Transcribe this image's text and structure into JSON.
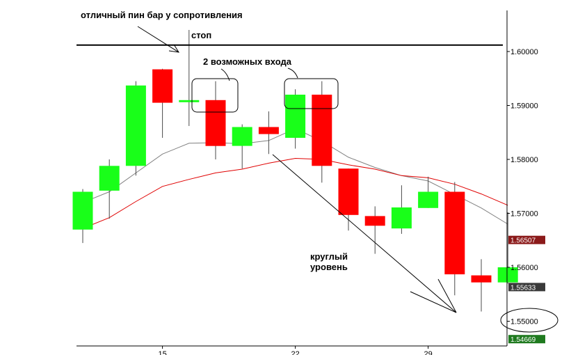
{
  "chart_data": {
    "type": "candlestick",
    "y_axis": {
      "range": [
        1.5445,
        1.6155
      ],
      "ticks": [
        "1.60000",
        "1.59000",
        "1.58000",
        "1.57000",
        "1.56000",
        "1.55000"
      ]
    },
    "x_axis": {
      "ticks": [
        {
          "label": "15",
          "index": 3
        },
        {
          "label": "22",
          "index": 8
        },
        {
          "label": "29",
          "index": 13
        }
      ]
    },
    "candles": [
      {
        "open": 1.567,
        "high": 1.5745,
        "low": 1.5645,
        "close": 1.574
      },
      {
        "open": 1.5742,
        "high": 1.58,
        "low": 1.569,
        "close": 1.5788
      },
      {
        "open": 1.5788,
        "high": 1.5945,
        "low": 1.577,
        "close": 1.5937
      },
      {
        "open": 1.5967,
        "high": 1.5968,
        "low": 1.584,
        "close": 1.5905
      },
      {
        "open": 1.591,
        "high": 1.604,
        "low": 1.5862,
        "close": 1.591
      },
      {
        "open": 1.591,
        "high": 1.5945,
        "low": 1.58,
        "close": 1.5825
      },
      {
        "open": 1.5825,
        "high": 1.5865,
        "low": 1.5783,
        "close": 1.586
      },
      {
        "open": 1.586,
        "high": 1.5889,
        "low": 1.581,
        "close": 1.5847
      },
      {
        "open": 1.584,
        "high": 1.593,
        "low": 1.582,
        "close": 1.592
      },
      {
        "open": 1.592,
        "high": 1.5945,
        "low": 1.5757,
        "close": 1.5788
      },
      {
        "open": 1.5783,
        "high": 1.5783,
        "low": 1.5668,
        "close": 1.5697
      },
      {
        "open": 1.5695,
        "high": 1.5713,
        "low": 1.5625,
        "close": 1.5677
      },
      {
        "open": 1.5672,
        "high": 1.5752,
        "low": 1.5662,
        "close": 1.5711
      },
      {
        "open": 1.571,
        "high": 1.5768,
        "low": 1.571,
        "close": 1.574
      },
      {
        "open": 1.574,
        "high": 1.5758,
        "low": 1.5548,
        "close": 1.5587
      },
      {
        "open": 1.5585,
        "high": 1.5615,
        "low": 1.5518,
        "close": 1.5572
      },
      {
        "open": 1.5572,
        "high": 1.5702,
        "low": 1.557,
        "close": 1.56
      }
    ],
    "moving_averages": [
      {
        "color": "#808080",
        "values": [
          1.572,
          1.574,
          1.5775,
          1.581,
          1.583,
          1.5831,
          1.5829,
          1.5835,
          1.5857,
          1.5834,
          1.5804,
          1.5785,
          1.577,
          1.576,
          1.5735,
          1.571,
          1.568
        ]
      },
      {
        "color": "#e00000",
        "values": [
          1.5672,
          1.5692,
          1.5722,
          1.575,
          1.5763,
          1.5775,
          1.5782,
          1.5793,
          1.5802,
          1.58,
          1.579,
          1.5782,
          1.577,
          1.5766,
          1.5754,
          1.5736,
          1.5715
        ]
      }
    ],
    "horizontal_lines": [
      {
        "value": 1.6012,
        "color": "#000000"
      }
    ],
    "price_labels": [
      {
        "value": 1.56507,
        "text": "1.56507",
        "color": "#8b1a1a"
      },
      {
        "value": 1.55633,
        "text": "1.55633",
        "color": "#3a3a3a"
      },
      {
        "value": 1.54669,
        "text": "1.54669",
        "color": "#1f7a1f"
      }
    ],
    "colors": {
      "bull": "#19ff19",
      "bear": "#ff0000",
      "wick": "#4a4a4a"
    }
  },
  "annotations": {
    "pin_bar": "отличный пин бар у сопротивления",
    "stop": "стоп",
    "entries": "2 возможных входа",
    "round_level_line1": "круглый",
    "round_level_line2": "уровень"
  }
}
